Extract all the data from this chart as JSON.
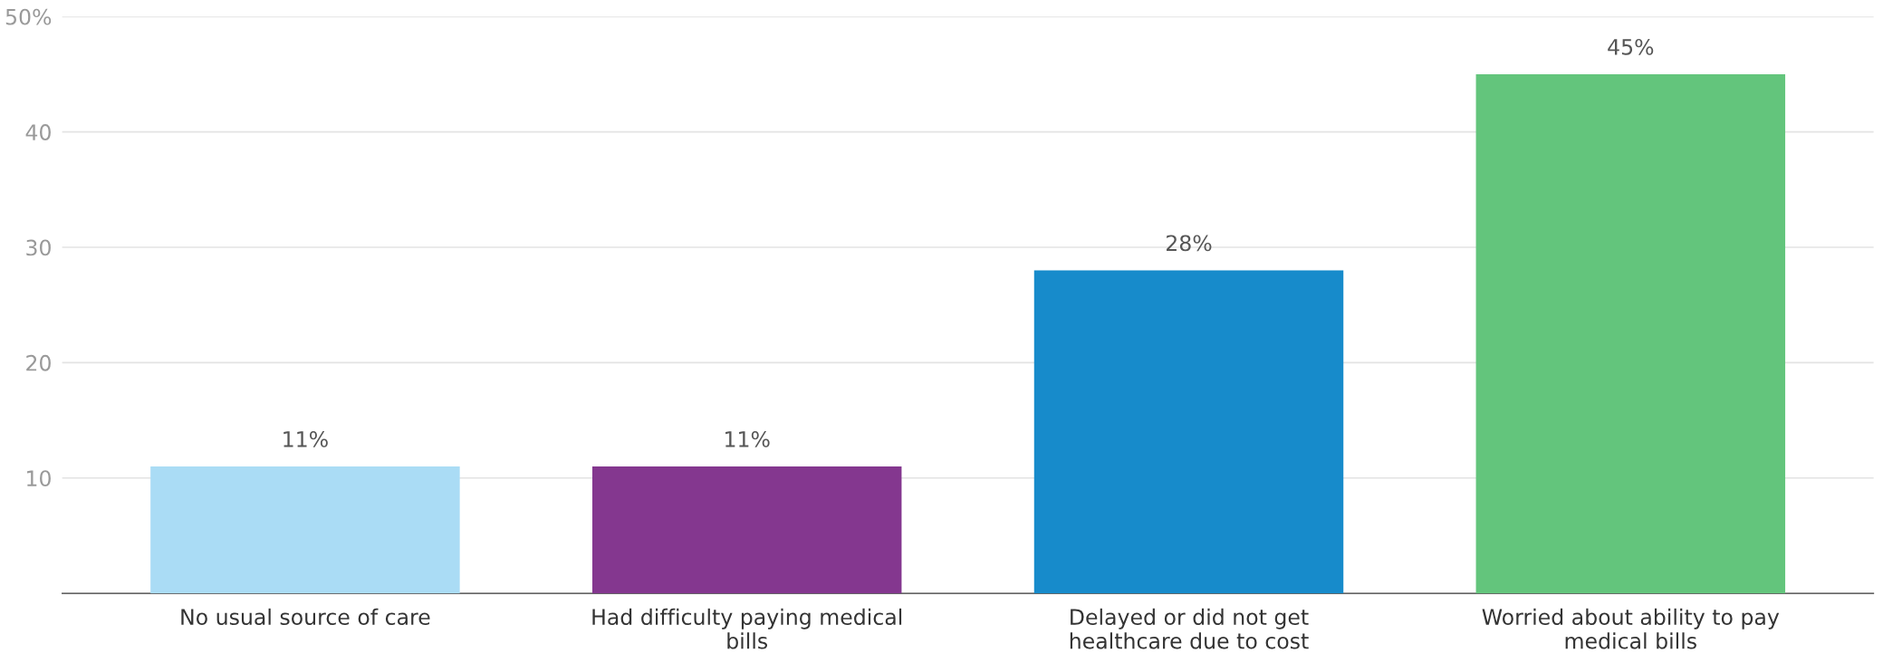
{
  "chart_data": {
    "type": "bar",
    "categories": [
      "No usual source of care",
      "Had difficulty paying medical bills",
      "Delayed or did not get healthcare due to cost",
      "Worried about ability to pay medical bills"
    ],
    "values": [
      11,
      11,
      28,
      45
    ],
    "colors": [
      "#aadcf5",
      "#84378f",
      "#178bcb",
      "#63c57c"
    ],
    "value_labels": [
      "11%",
      "11%",
      "28%",
      "45%"
    ],
    "ylim": [
      0,
      50
    ],
    "yticks": [
      10,
      20,
      30,
      40,
      {
        "value": 50,
        "label": "50%"
      }
    ],
    "grid": "y"
  }
}
